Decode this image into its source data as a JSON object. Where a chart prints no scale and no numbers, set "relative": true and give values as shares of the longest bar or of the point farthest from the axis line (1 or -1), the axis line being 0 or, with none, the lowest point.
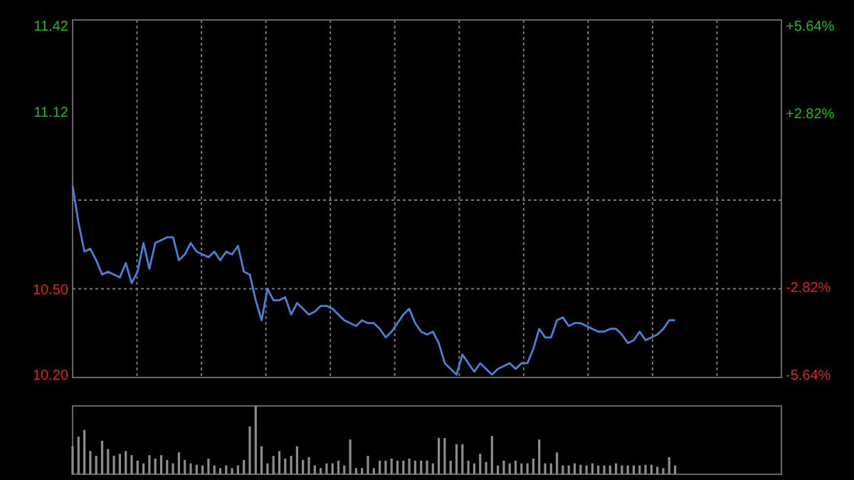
{
  "chart_data": [
    {
      "type": "line",
      "categories": [
        null,
        null,
        null,
        null,
        null,
        null,
        null,
        null,
        null,
        null,
        null,
        null,
        null,
        null,
        null,
        null,
        null,
        null,
        null,
        null,
        null,
        null,
        null,
        null,
        null,
        null,
        null,
        null,
        null,
        null,
        null,
        null,
        null,
        null,
        null,
        null,
        null,
        null,
        null,
        null,
        null,
        null,
        null,
        null,
        null,
        null,
        null,
        null,
        null,
        null,
        null,
        null,
        null,
        null,
        null,
        null,
        null,
        null,
        null,
        null,
        null,
        null,
        null,
        null,
        null,
        null,
        null,
        null,
        null,
        null,
        null,
        null,
        null,
        null,
        null,
        null,
        null,
        null,
        null,
        null,
        null,
        null,
        null,
        null,
        null,
        null,
        null,
        null,
        null,
        null,
        null,
        null,
        null,
        null,
        null,
        null,
        null,
        null,
        null,
        null,
        null,
        null,
        null
      ],
      "series": [
        {
          "color": "#4a7fd4",
          "values": [
            10.86,
            10.73,
            10.63,
            10.64,
            10.6,
            10.55,
            10.56,
            10.55,
            10.54,
            10.59,
            10.52,
            10.56,
            10.66,
            10.57,
            10.66,
            10.67,
            10.68,
            10.68,
            10.6,
            10.62,
            10.66,
            10.63,
            10.62,
            10.61,
            10.63,
            10.6,
            10.63,
            10.62,
            10.65,
            10.56,
            10.55,
            10.46,
            10.39,
            10.5,
            10.46,
            10.46,
            10.47,
            10.41,
            10.45,
            10.43,
            10.41,
            10.42,
            10.44,
            10.44,
            10.43,
            10.41,
            10.39,
            10.38,
            10.37,
            10.39,
            10.38,
            10.38,
            10.36,
            10.33,
            10.35,
            10.38,
            10.41,
            10.43,
            10.38,
            10.35,
            10.34,
            10.35,
            10.31,
            10.24,
            10.22,
            10.2,
            10.27,
            10.24,
            10.21,
            10.24,
            10.22,
            10.2,
            10.22,
            10.23,
            10.24,
            10.22,
            10.24,
            10.24,
            10.29,
            10.36,
            10.33,
            10.33,
            10.39,
            10.4,
            10.37,
            10.38,
            10.38,
            10.37,
            10.36,
            10.35,
            10.35,
            10.36,
            10.36,
            10.34,
            10.31,
            10.32,
            10.35,
            10.32,
            10.33,
            10.34,
            10.36,
            10.39,
            10.39
          ]
        }
      ],
      "ylim": [
        10.19,
        11.44
      ],
      "yticks": [
        {
          "value": 10.2,
          "label": "10.20"
        },
        {
          "value": 10.5,
          "label": "10.50"
        },
        {
          "value": 11.12,
          "label": "11.12"
        },
        {
          "value": 11.42,
          "label": "11.42"
        }
      ],
      "y2lim": [
        -5.74,
        5.83
      ],
      "y2ticks": [
        {
          "value": -5.64,
          "label": "-5.64%"
        },
        {
          "value": -2.82,
          "label": "-2.82%"
        },
        {
          "value": 2.82,
          "label": "+2.82%"
        },
        {
          "value": 5.64,
          "label": "+5.64%"
        }
      ],
      "ref_lines": [
        {
          "axis": "y",
          "value": 10.81,
          "line_style": "dotted"
        },
        {
          "axis": "y",
          "value": 10.5,
          "line_style": "dotted"
        }
      ],
      "grid": "x",
      "tick_labels": "y"
    },
    {
      "type": "bar",
      "relative": true,
      "categories": [
        null,
        null,
        null,
        null,
        null,
        null,
        null,
        null,
        null,
        null,
        null,
        null,
        null,
        null,
        null,
        null,
        null,
        null,
        null,
        null,
        null,
        null,
        null,
        null,
        null,
        null,
        null,
        null,
        null,
        null,
        null,
        null,
        null,
        null,
        null,
        null,
        null,
        null,
        null,
        null,
        null,
        null,
        null,
        null,
        null,
        null,
        null,
        null,
        null,
        null,
        null,
        null,
        null,
        null,
        null,
        null,
        null,
        null,
        null,
        null,
        null,
        null,
        null,
        null,
        null,
        null,
        null,
        null,
        null,
        null,
        null,
        null,
        null,
        null,
        null,
        null,
        null,
        null,
        null,
        null,
        null,
        null,
        null,
        null,
        null,
        null,
        null,
        null,
        null,
        null,
        null,
        null,
        null,
        null,
        null,
        null,
        null,
        null,
        null,
        null,
        null,
        null,
        null
      ],
      "series": [
        {
          "color": "#8c8c8c",
          "values": [
            0.41,
            0.55,
            0.65,
            0.34,
            0.27,
            0.49,
            0.37,
            0.27,
            0.3,
            0.34,
            0.28,
            0.2,
            0.16,
            0.28,
            0.23,
            0.28,
            0.21,
            0.16,
            0.32,
            0.21,
            0.16,
            0.14,
            0.13,
            0.23,
            0.13,
            0.09,
            0.13,
            0.09,
            0.13,
            0.21,
            0.7,
            1,
            0.41,
            0.16,
            0.27,
            0.34,
            0.23,
            0.27,
            0.41,
            0.21,
            0.25,
            0.13,
            0.09,
            0.16,
            0.16,
            0.2,
            0.13,
            0.51,
            0.09,
            0.09,
            0.27,
            0.09,
            0.2,
            0.2,
            0.23,
            0.2,
            0.2,
            0.23,
            0.2,
            0.2,
            0.2,
            0.16,
            0.53,
            0.53,
            0.2,
            0.44,
            0.44,
            0.2,
            0.16,
            0.3,
            0.18,
            0.56,
            0.13,
            0.2,
            0.16,
            0.2,
            0.16,
            0.16,
            0.23,
            0.51,
            0.16,
            0.16,
            0.32,
            0.13,
            0.13,
            0.16,
            0.14,
            0.13,
            0.16,
            0.13,
            0.13,
            0.13,
            0.16,
            0.13,
            0.13,
            0.13,
            0.13,
            0.14,
            0.14,
            0.11,
            0.09,
            0.25,
            0.13
          ]
        }
      ]
    }
  ]
}
